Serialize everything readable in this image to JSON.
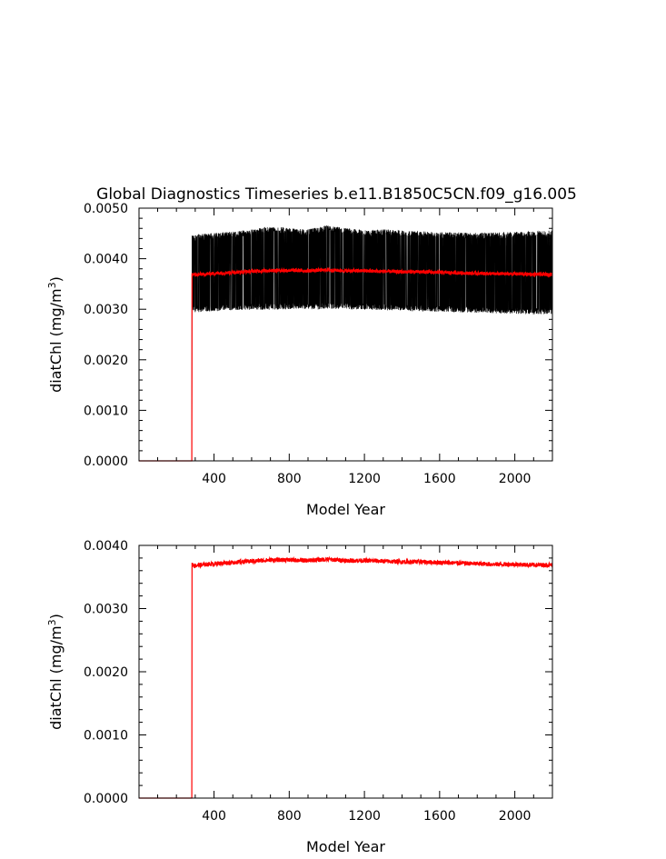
{
  "chart_data": [
    {
      "type": "line",
      "title": "Global Diagnostics Timeseries b.e11.B1850C5CN.f09_g16.005",
      "xlabel": "Model Year",
      "ylabel": "diatChl (mg/m",
      "ylabel_superscript": "3",
      "ylabel_close": ")",
      "xlim": [
        1,
        2200
      ],
      "ylim": [
        0,
        0.005
      ],
      "x_ticks": [
        400,
        800,
        1200,
        1600,
        2000
      ],
      "x_tick_labels": [
        "400",
        "800",
        "1200",
        "1600",
        "2000"
      ],
      "y_ticks": [
        0,
        0.001,
        0.002,
        0.003,
        0.004,
        0.005
      ],
      "y_tick_labels": [
        "0.0000",
        "0.0010",
        "0.0020",
        "0.0030",
        "0.0040",
        "0.0050"
      ],
      "grid": false,
      "spin_up_end_year": 282,
      "series": [
        {
          "color": "#000000",
          "style": "monthly-band",
          "x": [
            1,
            282,
            283,
            300,
            400,
            500,
            600,
            700,
            800,
            900,
            1000,
            1100,
            1200,
            1300,
            1400,
            1500,
            1600,
            1700,
            1800,
            1900,
            2000,
            2100,
            2200
          ],
          "y_min": [
            0,
            0,
            0.003,
            0.003,
            0.00302,
            0.00304,
            0.00305,
            0.00305,
            0.00306,
            0.00306,
            0.00306,
            0.00305,
            0.00305,
            0.00304,
            0.00303,
            0.00302,
            0.00301,
            0.003,
            0.00299,
            0.00298,
            0.00297,
            0.00296,
            0.00296
          ],
          "y_max": [
            0,
            0,
            0.0044,
            0.00442,
            0.00445,
            0.00448,
            0.00452,
            0.00458,
            0.00455,
            0.00452,
            0.0046,
            0.00455,
            0.0045,
            0.00452,
            0.0045,
            0.00448,
            0.00447,
            0.00446,
            0.00445,
            0.00446,
            0.00447,
            0.00448,
            0.0045
          ]
        },
        {
          "color": "#ff0000",
          "style": "annual-mean",
          "x": [
            1,
            282,
            283,
            300,
            400,
            500,
            600,
            700,
            800,
            900,
            1000,
            1100,
            1200,
            1300,
            1400,
            1500,
            1600,
            1700,
            1800,
            1900,
            2000,
            2100,
            2200
          ],
          "y": [
            0,
            0,
            0.0037,
            0.00368,
            0.00371,
            0.00373,
            0.00375,
            0.00377,
            0.00377,
            0.00376,
            0.00378,
            0.00376,
            0.00376,
            0.00375,
            0.00374,
            0.00374,
            0.00373,
            0.00372,
            0.00371,
            0.0037,
            0.0037,
            0.00369,
            0.00369
          ]
        }
      ]
    },
    {
      "type": "line",
      "title": "",
      "xlabel": "Model Year",
      "ylabel": "diatChl (mg/m",
      "ylabel_superscript": "3",
      "ylabel_close": ")",
      "xlim": [
        1,
        2200
      ],
      "ylim": [
        0,
        0.004
      ],
      "x_ticks": [
        400,
        800,
        1200,
        1600,
        2000
      ],
      "x_tick_labels": [
        "400",
        "800",
        "1200",
        "1600",
        "2000"
      ],
      "y_ticks": [
        0,
        0.001,
        0.002,
        0.003,
        0.004
      ],
      "y_tick_labels": [
        "0.0000",
        "0.0010",
        "0.0020",
        "0.0030",
        "0.0040"
      ],
      "grid": false,
      "spin_up_end_year": 282,
      "series": [
        {
          "color": "#ff0000",
          "style": "annual-mean",
          "x": [
            1,
            282,
            283,
            300,
            400,
            500,
            600,
            700,
            800,
            900,
            1000,
            1100,
            1200,
            1300,
            1400,
            1500,
            1600,
            1700,
            1800,
            1900,
            2000,
            2100,
            2200
          ],
          "y": [
            0,
            0,
            0.0037,
            0.00368,
            0.00371,
            0.00373,
            0.00375,
            0.00377,
            0.00377,
            0.00376,
            0.00378,
            0.00376,
            0.00376,
            0.00375,
            0.00374,
            0.00374,
            0.00373,
            0.00372,
            0.00371,
            0.0037,
            0.0037,
            0.00369,
            0.00369
          ]
        }
      ]
    }
  ]
}
